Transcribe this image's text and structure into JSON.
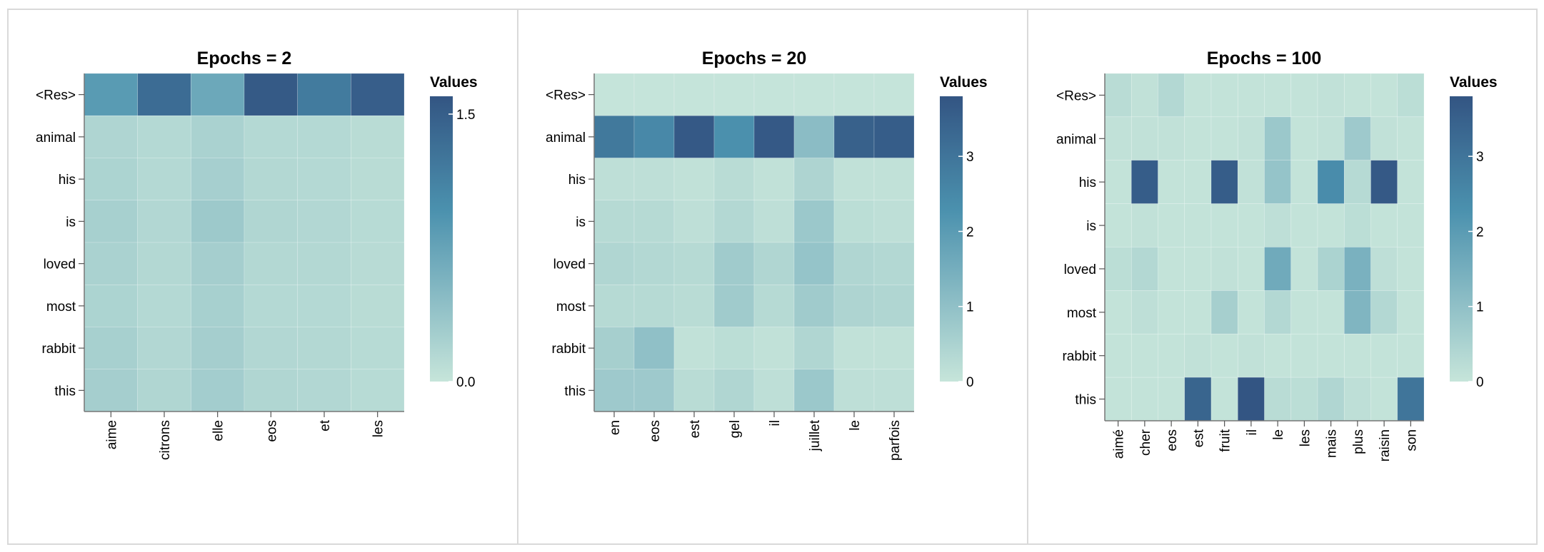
{
  "chart_data": [
    {
      "type": "heatmap",
      "title": "Epochs = 2",
      "y_categories": [
        "<Res>",
        "animal",
        "his",
        "is",
        "loved",
        "most",
        "rabbit",
        "this"
      ],
      "x_categories": [
        "aime",
        "citrons",
        "elle",
        "eos",
        "et",
        "les"
      ],
      "values": [
        [
          0.85,
          1.35,
          0.7,
          1.55,
          1.2,
          1.5
        ],
        [
          0.18,
          0.14,
          0.22,
          0.14,
          0.14,
          0.1
        ],
        [
          0.2,
          0.14,
          0.25,
          0.15,
          0.14,
          0.1
        ],
        [
          0.24,
          0.16,
          0.32,
          0.17,
          0.16,
          0.12
        ],
        [
          0.22,
          0.15,
          0.26,
          0.15,
          0.15,
          0.11
        ],
        [
          0.2,
          0.14,
          0.24,
          0.14,
          0.14,
          0.1
        ],
        [
          0.24,
          0.16,
          0.26,
          0.16,
          0.15,
          0.12
        ],
        [
          0.26,
          0.17,
          0.27,
          0.17,
          0.16,
          0.12
        ]
      ],
      "colorbar": {
        "title": "Values",
        "min": 0.0,
        "max": 1.6,
        "ticks": [
          0.0,
          1.5
        ],
        "tick_labels": [
          "0.0",
          "1.5"
        ]
      },
      "colors": {
        "low": "#c6e5da",
        "mid": "#4b91ae",
        "high": "#335583"
      }
    },
    {
      "type": "heatmap",
      "title": "Epochs = 20",
      "y_categories": [
        "<Res>",
        "animal",
        "his",
        "is",
        "loved",
        "most",
        "rabbit",
        "this"
      ],
      "x_categories": [
        "en",
        "eos",
        "est",
        "gel",
        "il",
        "juillet",
        "le",
        "parfois"
      ],
      "values": [
        [
          0.02,
          0.02,
          0.02,
          0.02,
          0.02,
          0.02,
          0.02,
          0.02
        ],
        [
          2.9,
          2.5,
          3.7,
          2.3,
          3.7,
          1.1,
          3.5,
          3.6
        ],
        [
          0.15,
          0.15,
          0.1,
          0.25,
          0.1,
          0.45,
          0.1,
          0.1
        ],
        [
          0.3,
          0.3,
          0.15,
          0.35,
          0.15,
          0.8,
          0.2,
          0.15
        ],
        [
          0.4,
          0.35,
          0.3,
          0.7,
          0.4,
          0.9,
          0.4,
          0.35
        ],
        [
          0.3,
          0.3,
          0.25,
          0.7,
          0.3,
          0.7,
          0.45,
          0.4
        ],
        [
          0.6,
          1.0,
          0.1,
          0.2,
          0.1,
          0.4,
          0.1,
          0.1
        ],
        [
          0.75,
          0.75,
          0.25,
          0.4,
          0.15,
          0.8,
          0.15,
          0.15
        ]
      ],
      "colorbar": {
        "title": "Values",
        "min": 0,
        "max": 3.8,
        "ticks": [
          0,
          1,
          2,
          3
        ],
        "tick_labels": [
          "0",
          "1",
          "2",
          "3"
        ]
      },
      "colors": {
        "low": "#c6e5da",
        "mid": "#4b91ae",
        "high": "#335583"
      }
    },
    {
      "type": "heatmap",
      "title": "Epochs = 100",
      "y_categories": [
        "<Res>",
        "animal",
        "his",
        "is",
        "loved",
        "most",
        "rabbit",
        "this"
      ],
      "x_categories": [
        "aimé",
        "cher",
        "eos",
        "est",
        "fruit",
        "il",
        "le",
        "les",
        "mais",
        "plus",
        "raisin",
        "son"
      ],
      "values": [
        [
          0.25,
          0.1,
          0.35,
          0.05,
          0.05,
          0.05,
          0.05,
          0.05,
          0.1,
          0.05,
          0.05,
          0.2
        ],
        [
          0.1,
          0.1,
          0.1,
          0.05,
          0.05,
          0.1,
          0.8,
          0.05,
          0.1,
          0.75,
          0.1,
          0.05
        ],
        [
          0.05,
          3.6,
          0.05,
          0.05,
          3.6,
          0.1,
          0.9,
          0.05,
          2.4,
          0.3,
          3.7,
          0.05
        ],
        [
          0.05,
          0.1,
          0.05,
          0.05,
          0.05,
          0.05,
          0.15,
          0.05,
          0.05,
          0.2,
          0.05,
          0.05
        ],
        [
          0.2,
          0.35,
          0.05,
          0.05,
          0.1,
          0.05,
          1.6,
          0.05,
          0.5,
          1.4,
          0.15,
          0.05
        ],
        [
          0.05,
          0.15,
          0.05,
          0.05,
          0.6,
          0.05,
          0.35,
          0.05,
          0.05,
          1.3,
          0.35,
          0.05
        ],
        [
          0.05,
          0.05,
          0.05,
          0.1,
          0.05,
          0.1,
          0.05,
          0.05,
          0.05,
          0.05,
          0.05,
          0.05
        ],
        [
          0.05,
          0.05,
          0.05,
          3.4,
          0.05,
          3.9,
          0.25,
          0.2,
          0.4,
          0.15,
          0.05,
          3.0
        ]
      ],
      "colorbar": {
        "title": "Values",
        "min": 0,
        "max": 3.8,
        "ticks": [
          0,
          1,
          2,
          3
        ],
        "tick_labels": [
          "0",
          "1",
          "2",
          "3"
        ]
      },
      "colors": {
        "low": "#c6e5da",
        "mid": "#4b91ae",
        "high": "#335583"
      }
    }
  ]
}
